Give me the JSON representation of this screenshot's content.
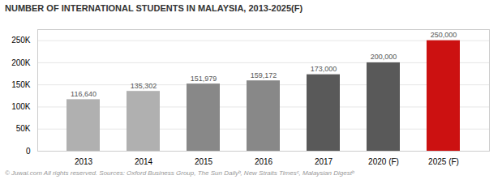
{
  "chart_data": {
    "type": "bar",
    "title": "NUMBER OF INTERNATIONAL STUDENTS IN MALAYSIA, 2013-2025(F)",
    "caption": "© Juwai.com All rights reserved. Sources: Oxford Business Group, The Sun Dailyᵇ, New Straits Timesᶜ, Malaysian Digestᵇ",
    "categories": [
      "2013",
      "2014",
      "2015",
      "2016",
      "2017",
      "2020 (F)",
      "2025 (F)"
    ],
    "values": [
      116640,
      135302,
      151979,
      159172,
      173000,
      200000,
      250000
    ],
    "value_labels": [
      "116,640",
      "135,302",
      "151,979",
      "159,172",
      "173,000",
      "200,000",
      "250,000"
    ],
    "colors": [
      "#b0b0b0",
      "#b0b0b0",
      "#888888",
      "#888888",
      "#595959",
      "#595959",
      "#cc1111"
    ],
    "ylim": [
      0,
      275000
    ],
    "yticks": [
      0,
      {
        "value": 50000,
        "label": "50K"
      },
      {
        "value": 100000,
        "label": "100K"
      },
      {
        "value": 150000,
        "label": "150K"
      },
      {
        "value": 200000,
        "label": "200K"
      },
      {
        "value": 250000,
        "label": "250K"
      }
    ],
    "grid": true,
    "data_labels": true
  }
}
